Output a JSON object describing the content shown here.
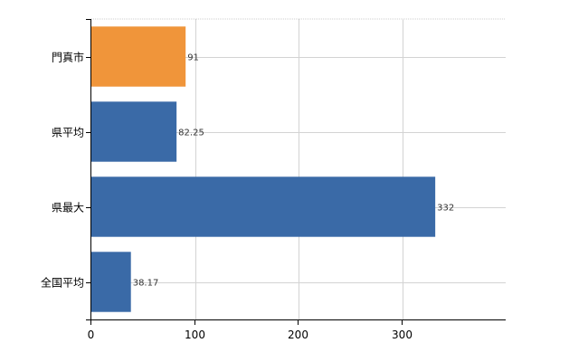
{
  "chart_data": {
    "type": "bar",
    "orientation": "horizontal",
    "categories": [
      "門真市",
      "県平均",
      "県最大",
      "全国平均"
    ],
    "values": [
      91,
      82.25,
      332,
      38.17
    ],
    "value_labels": [
      "91",
      "82.25",
      "332",
      "38.17"
    ],
    "colors": [
      "#f0953a",
      "#3a6aa7",
      "#3a6aa7",
      "#3a6aa7"
    ],
    "xlim": [
      0,
      400
    ],
    "xticks": [
      0,
      100,
      200,
      300
    ],
    "xtick_labels": [
      "0",
      "100",
      "200",
      "300"
    ],
    "grid": true,
    "title": "",
    "xlabel": "",
    "ylabel": ""
  }
}
